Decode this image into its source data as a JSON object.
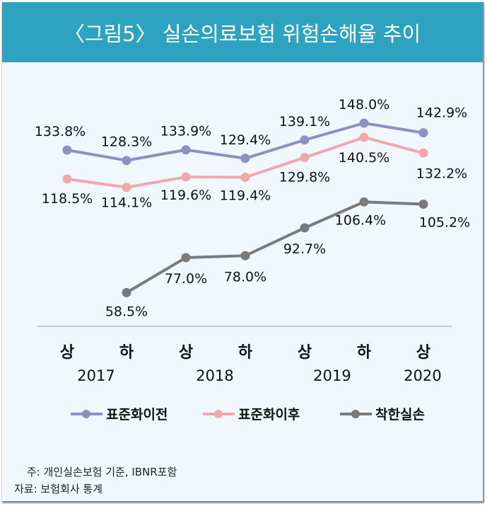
{
  "header": {
    "title": "〈그림5〉 실손의료보험 위험손해율 추이"
  },
  "chart_data": {
    "type": "line",
    "title": "〈그림5〉 실손의료보험 위험손해율 추이",
    "categories": [
      "상",
      "하",
      "상",
      "하",
      "상",
      "하",
      "상"
    ],
    "years": [
      "2017",
      "2018",
      "2019",
      "2020"
    ],
    "series": [
      {
        "name": "표준화이전",
        "color": "#8f8fc2",
        "values": [
          133.8,
          128.3,
          133.9,
          129.4,
          139.1,
          148.0,
          142.9
        ],
        "labels": [
          "133.8%",
          "128.3%",
          "133.9%",
          "129.4%",
          "139.1%",
          "148.0%",
          "142.9%"
        ]
      },
      {
        "name": "표준화이후",
        "color": "#f2a7ab",
        "values": [
          118.5,
          114.1,
          119.6,
          119.4,
          129.8,
          140.5,
          132.2
        ],
        "labels": [
          "118.5%",
          "114.1%",
          "119.6%",
          "119.4%",
          "129.8%",
          "140.5%",
          "132.2%"
        ]
      },
      {
        "name": "착한실손",
        "color": "#7a7a7a",
        "values": [
          null,
          58.5,
          77.0,
          78.0,
          92.7,
          106.4,
          105.2
        ],
        "labels": [
          null,
          "58.5%",
          "77.0%",
          "78.0%",
          "92.7%",
          "106.4%",
          "105.2%"
        ]
      }
    ],
    "legend": "bottom",
    "grid": false
  },
  "notes": {
    "note1": "주: 개인실손보험 기준, IBNR포함",
    "note2": "자료: 보험회사 통계"
  }
}
